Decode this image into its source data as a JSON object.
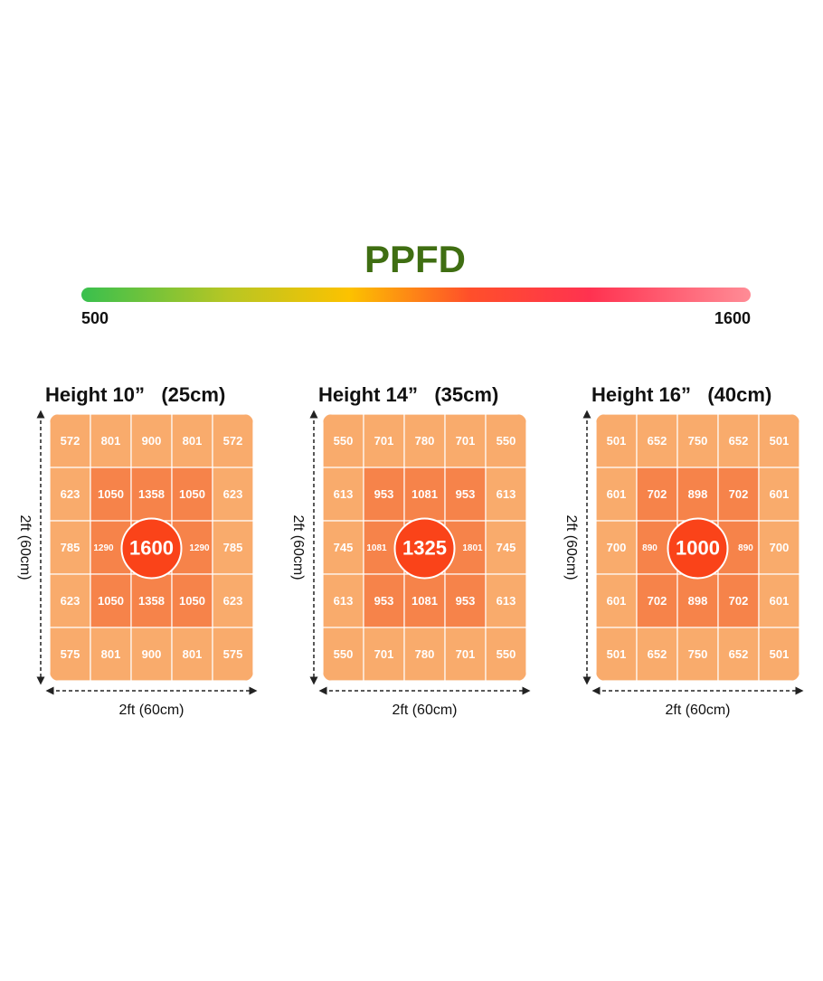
{
  "title": "PPFD",
  "scale": {
    "min_label": "500",
    "max_label": "1600"
  },
  "panels": [
    {
      "title": "Height 10”   (25cm)",
      "height_label": "2ft (60cm)",
      "width_label": "2ft (60cm)",
      "rows": [
        [
          572,
          801,
          900,
          801,
          572
        ],
        [
          623,
          1050,
          1358,
          1050,
          623
        ],
        [
          785,
          1290,
          1600,
          1290,
          785
        ],
        [
          623,
          1050,
          1358,
          1050,
          623
        ],
        [
          575,
          801,
          900,
          801,
          575
        ]
      ]
    },
    {
      "title": "Height 14”   (35cm)",
      "height_label": "2ft (60cm)",
      "width_label": "2ft (60cm)",
      "rows": [
        [
          550,
          701,
          780,
          701,
          550
        ],
        [
          613,
          953,
          1081,
          953,
          613
        ],
        [
          745,
          1081,
          1325,
          1801,
          745
        ],
        [
          613,
          953,
          1081,
          953,
          613
        ],
        [
          550,
          701,
          780,
          701,
          550
        ]
      ]
    },
    {
      "title": "Height 16”   (40cm)",
      "height_label": "2ft (60cm)",
      "width_label": "2ft (60cm)",
      "rows": [
        [
          501,
          652,
          750,
          652,
          501
        ],
        [
          601,
          702,
          898,
          702,
          601
        ],
        [
          700,
          890,
          1000,
          890,
          700
        ],
        [
          601,
          702,
          898,
          702,
          601
        ],
        [
          501,
          652,
          750,
          652,
          501
        ]
      ]
    }
  ]
}
